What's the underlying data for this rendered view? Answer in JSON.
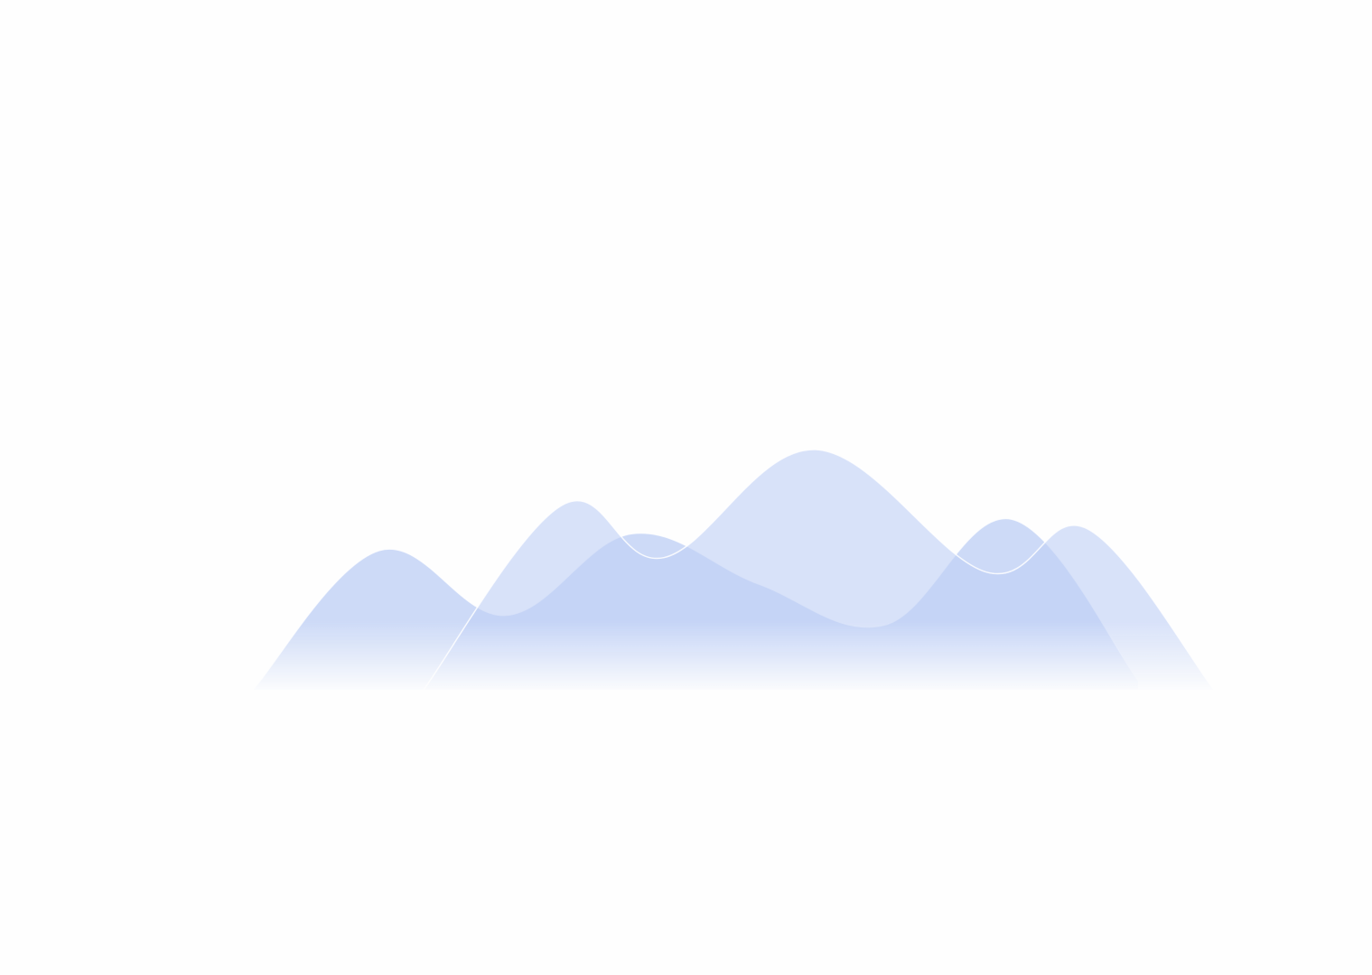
{
  "chart_data": {
    "type": "area",
    "title": "",
    "xlabel": "",
    "ylabel": "",
    "grid": false,
    "legend": "none",
    "ylim": [
      0,
      100
    ],
    "series": [
      {
        "color": "#aec4f2",
        "points": [
          [
            0,
            0
          ],
          [
            1,
            58
          ],
          [
            2,
            31
          ],
          [
            3,
            65
          ],
          [
            4,
            44
          ],
          [
            5,
            27
          ],
          [
            6,
            71
          ],
          [
            7,
            4
          ]
        ]
      },
      {
        "color": "#c0d1f5",
        "points": [
          [
            1.35,
            0
          ],
          [
            2.45,
            77
          ],
          [
            3.25,
            55
          ],
          [
            4.45,
            100
          ],
          [
            5.8,
            49
          ],
          [
            6.6,
            67
          ],
          [
            7.6,
            0
          ]
        ]
      }
    ]
  }
}
